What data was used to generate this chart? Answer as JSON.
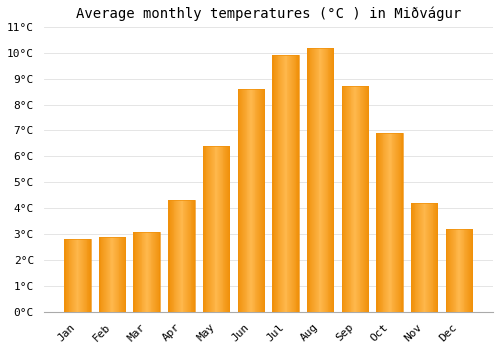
{
  "title": "Average monthly temperatures (°C ) in Miðvágur",
  "months": [
    "Jan",
    "Feb",
    "Mar",
    "Apr",
    "May",
    "Jun",
    "Jul",
    "Aug",
    "Sep",
    "Oct",
    "Nov",
    "Dec"
  ],
  "values": [
    2.8,
    2.9,
    3.1,
    4.3,
    6.4,
    8.6,
    9.9,
    10.2,
    8.7,
    6.9,
    4.2,
    3.2
  ],
  "bar_color_center": "#FFB84D",
  "bar_color_edge": "#F0900A",
  "ylim": [
    0,
    11
  ],
  "ytick_step": 1,
  "background_color": "#ffffff",
  "grid_color": "#e0e0e0",
  "title_fontsize": 10,
  "tick_fontsize": 8,
  "font_family": "monospace"
}
